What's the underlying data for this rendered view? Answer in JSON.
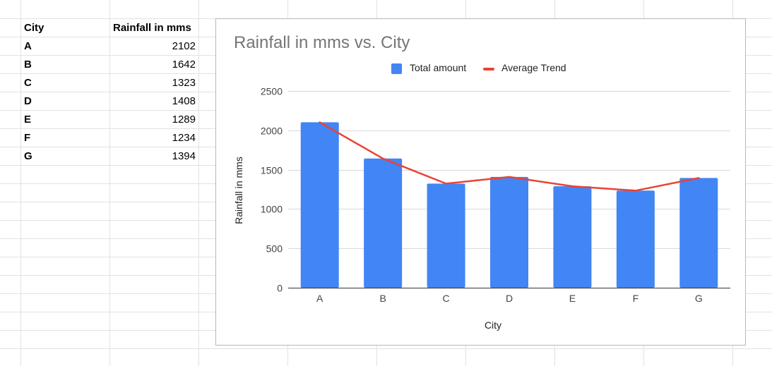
{
  "sheet": {
    "headers": [
      "City",
      "Rainfall in mms"
    ],
    "rows": [
      {
        "city": "A",
        "rainfall": "2102"
      },
      {
        "city": "B",
        "rainfall": "1642"
      },
      {
        "city": "C",
        "rainfall": "1323"
      },
      {
        "city": "D",
        "rainfall": "1408"
      },
      {
        "city": "E",
        "rainfall": "1289"
      },
      {
        "city": "F",
        "rainfall": "1234"
      },
      {
        "city": "G",
        "rainfall": "1394"
      }
    ]
  },
  "chart_data": {
    "type": "bar",
    "title": "Rainfall in mms vs. City",
    "xlabel": "City",
    "ylabel": "Rainfall in mms",
    "categories": [
      "A",
      "B",
      "C",
      "D",
      "E",
      "F",
      "G"
    ],
    "series": [
      {
        "name": "Total amount",
        "type": "bar",
        "color": "#4285f4",
        "values": [
          2102,
          1642,
          1323,
          1408,
          1289,
          1234,
          1394
        ]
      },
      {
        "name": "Average Trend",
        "type": "line",
        "color": "#ea4335",
        "values": [
          2102,
          1642,
          1323,
          1408,
          1289,
          1234,
          1394
        ]
      }
    ],
    "ylim": [
      0,
      2500
    ],
    "yticks": [
      "0",
      "500",
      "1000",
      "1500",
      "2000",
      "2500"
    ],
    "legend": "top",
    "grid": true
  }
}
